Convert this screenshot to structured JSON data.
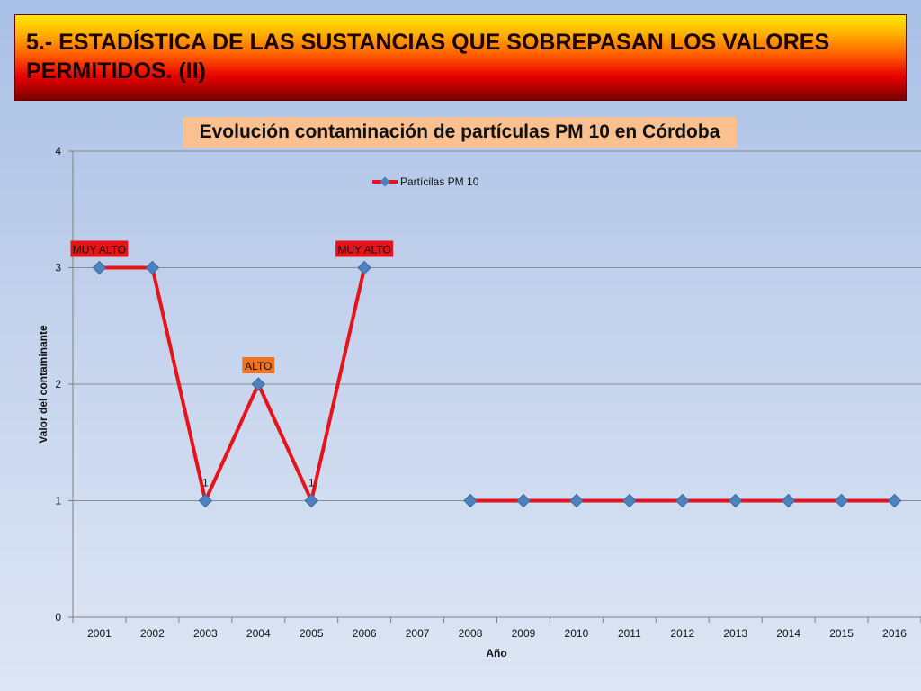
{
  "banner": {
    "title": "5.- ESTADÍSTICA DE LAS SUSTANCIAS QUE SOBREPASAN LOS VALORES PERMITIDOS. (II)"
  },
  "colors": {
    "line": "#e8131a",
    "marker": "#4f81bd",
    "label_very_high": "#e8131a",
    "label_high": "#f2731f",
    "title_box": "#fac090"
  },
  "chart_data": {
    "type": "line",
    "title": "Evolución contaminación de partículas PM 10 en Córdoba",
    "xlabel": "Año",
    "ylabel": "Valor del contaminante",
    "ylim": [
      0,
      4
    ],
    "yticks": [
      "0",
      "1",
      "2",
      "3",
      "4"
    ],
    "categories": [
      "2001",
      "2002",
      "2003",
      "2004",
      "2005",
      "2006",
      "2007",
      "2008",
      "2009",
      "2010",
      "2011",
      "2012",
      "2013",
      "2014",
      "2015",
      "2016"
    ],
    "series": [
      {
        "name": "Partícilas PM 10",
        "values": [
          3,
          3,
          1,
          2,
          1,
          3,
          null,
          1,
          1,
          1,
          1,
          1,
          1,
          1,
          1,
          1
        ]
      }
    ],
    "data_labels": [
      {
        "category": "2001",
        "text": "MUY ALTO",
        "style": "very_high"
      },
      {
        "category": "2003",
        "text": "1",
        "style": "plain"
      },
      {
        "category": "2004",
        "text": "ALTO",
        "style": "high"
      },
      {
        "category": "2005",
        "text": "1",
        "style": "plain"
      },
      {
        "category": "2006",
        "text": "MUY ALTO",
        "style": "very_high"
      }
    ],
    "legend_position": "top-center",
    "grid": true
  }
}
